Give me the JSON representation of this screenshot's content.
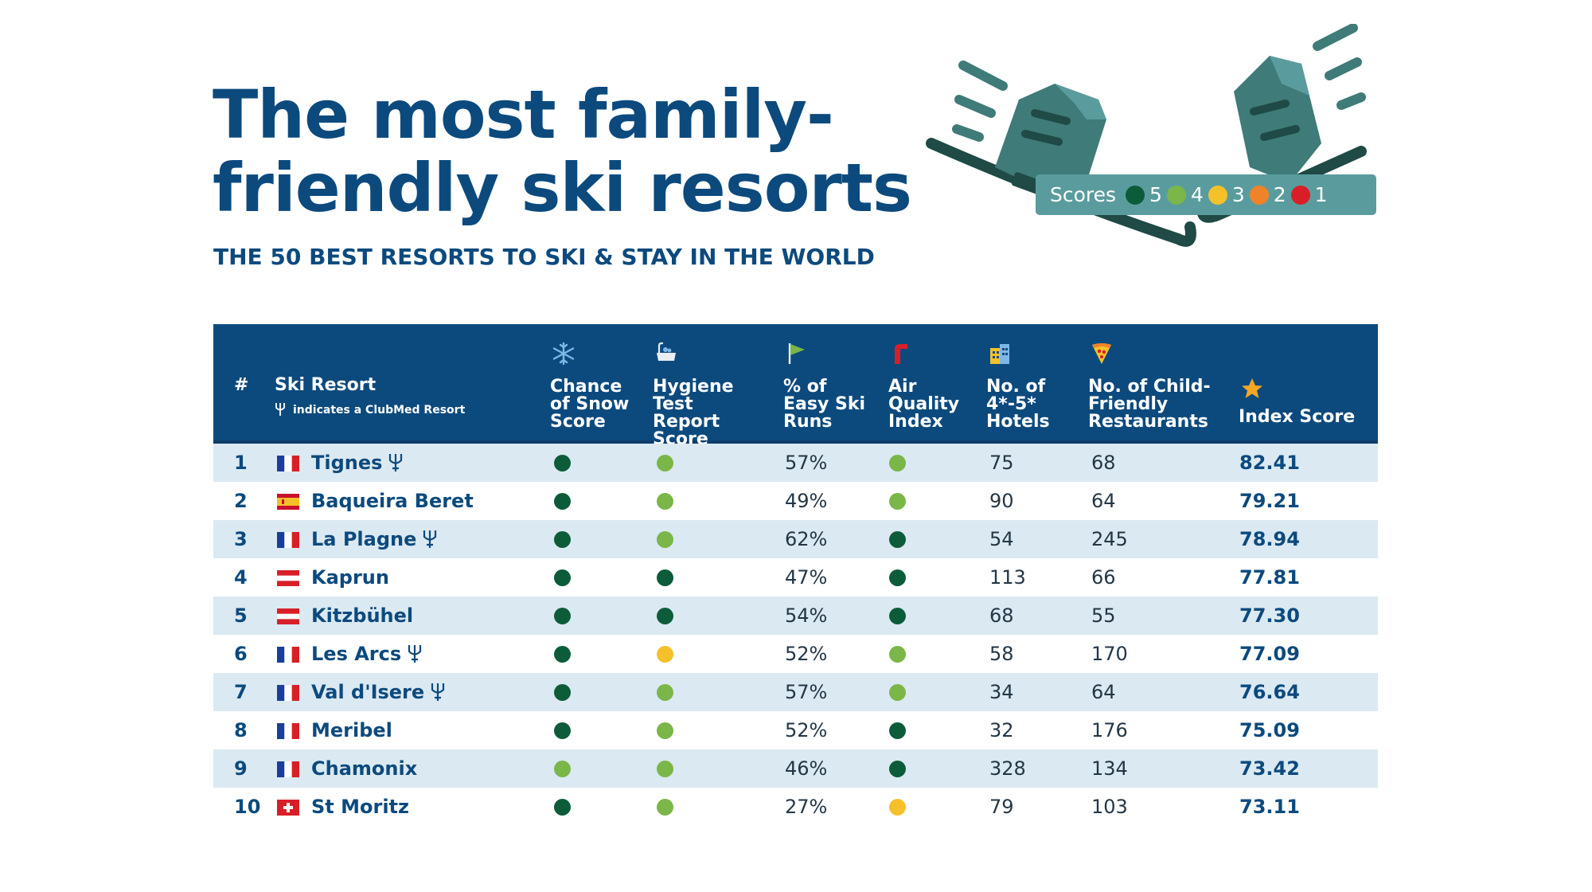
{
  "header": {
    "title": "The most family-friendly ski resorts",
    "subtitle": "THE 50 BEST RESORTS TO SKI & STAY IN THE WORLD"
  },
  "legend": {
    "label": "Scores",
    "items": [
      {
        "value": "5",
        "color": "#0c5c3a"
      },
      {
        "value": "4",
        "color": "#7ab648"
      },
      {
        "value": "3",
        "color": "#f5c12a"
      },
      {
        "value": "2",
        "color": "#f0832a"
      },
      {
        "value": "1",
        "color": "#d81f27"
      }
    ]
  },
  "score_colors": {
    "5": "#0c5c3a",
    "4": "#7ab648",
    "3": "#f5c12a",
    "2": "#f0832a",
    "1": "#d81f27"
  },
  "table": {
    "headers": {
      "rank": "#",
      "resort": "Ski Resort",
      "resort_note": "indicates a ClubMed Resort",
      "snow": "Chance of Snow Score",
      "hygiene": "Hygiene Test Report Score",
      "easy": "% of Easy Ski Runs",
      "air": "Air Quality Index",
      "hotels": "No. of 4*-5* Hotels",
      "restaurants": "No. of Child-Friendly Restaurants",
      "index": "Index Score"
    },
    "header_icons": {
      "snow": "snowflake-icon",
      "hygiene": "bathtub-icon",
      "easy": "flag-icon",
      "air": "chimney-icon",
      "hotels": "building-icon",
      "restaurants": "pizza-icon",
      "index": "star-icon"
    },
    "rows": [
      {
        "rank": "1",
        "country": "france",
        "name": "Tignes",
        "clubmed": true,
        "snow": 5,
        "hygiene": 4,
        "easy": "57%",
        "air": 4,
        "hotels": "75",
        "restaurants": "68",
        "index": "82.41"
      },
      {
        "rank": "2",
        "country": "spain",
        "name": "Baqueira Beret",
        "clubmed": false,
        "snow": 5,
        "hygiene": 4,
        "easy": "49%",
        "air": 4,
        "hotels": "90",
        "restaurants": "64",
        "index": "79.21"
      },
      {
        "rank": "3",
        "country": "france",
        "name": "La Plagne",
        "clubmed": true,
        "snow": 5,
        "hygiene": 4,
        "easy": "62%",
        "air": 5,
        "hotels": "54",
        "restaurants": "245",
        "index": "78.94"
      },
      {
        "rank": "4",
        "country": "austria",
        "name": "Kaprun",
        "clubmed": false,
        "snow": 5,
        "hygiene": 5,
        "easy": "47%",
        "air": 5,
        "hotels": "113",
        "restaurants": "66",
        "index": "77.81"
      },
      {
        "rank": "5",
        "country": "austria",
        "name": "Kitzbühel",
        "clubmed": false,
        "snow": 5,
        "hygiene": 5,
        "easy": "54%",
        "air": 5,
        "hotels": "68",
        "restaurants": "55",
        "index": "77.30"
      },
      {
        "rank": "6",
        "country": "france",
        "name": "Les Arcs",
        "clubmed": true,
        "snow": 5,
        "hygiene": 3,
        "easy": "52%",
        "air": 4,
        "hotels": "58",
        "restaurants": "170",
        "index": "77.09"
      },
      {
        "rank": "7",
        "country": "france",
        "name": "Val d'Isere",
        "clubmed": true,
        "snow": 5,
        "hygiene": 4,
        "easy": "57%",
        "air": 4,
        "hotels": "34",
        "restaurants": "64",
        "index": "76.64"
      },
      {
        "rank": "8",
        "country": "france",
        "name": "Meribel",
        "clubmed": false,
        "snow": 5,
        "hygiene": 4,
        "easy": "52%",
        "air": 5,
        "hotels": "32",
        "restaurants": "176",
        "index": "75.09"
      },
      {
        "rank": "9",
        "country": "france",
        "name": "Chamonix",
        "clubmed": false,
        "snow": 4,
        "hygiene": 4,
        "easy": "46%",
        "air": 5,
        "hotels": "328",
        "restaurants": "134",
        "index": "73.42"
      },
      {
        "rank": "10",
        "country": "switzerland",
        "name": "St Moritz",
        "clubmed": false,
        "snow": 5,
        "hygiene": 4,
        "easy": "27%",
        "air": 3,
        "hotels": "79",
        "restaurants": "103",
        "index": "73.11"
      }
    ]
  }
}
